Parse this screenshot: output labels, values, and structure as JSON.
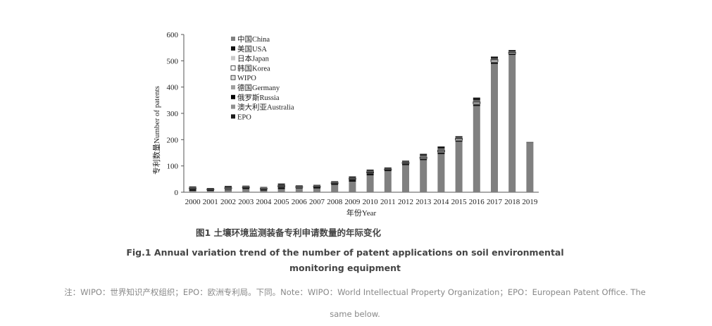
{
  "chart_data": {
    "type": "bar",
    "stacked": true,
    "xlabel": "年份Year",
    "ylabel": "专利数量Number of patents",
    "ylim": [
      0,
      600
    ],
    "yticks": [
      0,
      100,
      200,
      300,
      400,
      500,
      600
    ],
    "legend_position": "top-left",
    "categories": [
      "2000",
      "2001",
      "2002",
      "2003",
      "2004",
      "2005",
      "2006",
      "2007",
      "2008",
      "2009",
      "2010",
      "2011",
      "2012",
      "2013",
      "2014",
      "2015",
      "2016",
      "2017",
      "2018",
      "2019"
    ],
    "series": [
      {
        "name": "中国China",
        "color": "#808080",
        "values": [
          5,
          5,
          8,
          12,
          6,
          12,
          14,
          14,
          28,
          40,
          64,
          80,
          103,
          122,
          145,
          192,
          328,
          488,
          522,
          188
        ]
      },
      {
        "name": "美国USA",
        "color": "#111111",
        "values": [
          7,
          4,
          3,
          5,
          5,
          7,
          3,
          5,
          5,
          8,
          8,
          5,
          5,
          4,
          6,
          4,
          6,
          6,
          4,
          1
        ]
      },
      {
        "name": "日本Japan",
        "color": "#c8c8c8",
        "values": [
          2,
          1,
          3,
          1,
          2,
          2,
          2,
          1,
          1,
          2,
          2,
          1,
          2,
          2,
          2,
          2,
          2,
          2,
          1,
          1
        ]
      },
      {
        "name": "韩国Korea",
        "color": "#ffffff",
        "values": [
          1,
          1,
          2,
          1,
          1,
          2,
          1,
          1,
          1,
          1,
          2,
          1,
          1,
          3,
          4,
          5,
          5,
          6,
          4,
          0
        ]
      },
      {
        "name": "WIPO",
        "color": "#dddddd",
        "values": [
          1,
          1,
          1,
          1,
          1,
          2,
          1,
          1,
          1,
          2,
          2,
          1,
          2,
          3,
          3,
          2,
          3,
          3,
          2,
          0
        ]
      },
      {
        "name": "德国Germany",
        "color": "#a0a0a0",
        "values": [
          1,
          1,
          1,
          1,
          1,
          1,
          1,
          1,
          1,
          1,
          1,
          1,
          1,
          2,
          2,
          1,
          2,
          1,
          1,
          0
        ]
      },
      {
        "name": "俄罗斯Russia",
        "color": "#000000",
        "values": [
          1,
          1,
          1,
          1,
          1,
          1,
          1,
          1,
          1,
          1,
          1,
          1,
          1,
          2,
          2,
          1,
          2,
          1,
          1,
          0
        ]
      },
      {
        "name": "澳大利亚Australia",
        "color": "#909090",
        "values": [
          1,
          0,
          1,
          1,
          1,
          1,
          1,
          1,
          1,
          1,
          1,
          1,
          1,
          2,
          2,
          1,
          2,
          1,
          1,
          0
        ]
      },
      {
        "name": "EPO",
        "color": "#1a1a1a",
        "values": [
          3,
          2,
          4,
          2,
          2,
          5,
          2,
          3,
          3,
          4,
          5,
          3,
          4,
          6,
          8,
          5,
          10,
          8,
          5,
          1
        ]
      }
    ]
  },
  "caption": {
    "cn": "图1 土壤环境监测装备专利申请数量的年际变化",
    "en_line1": "Fig.1 Annual variation trend of the number of patent applications on soil environmental",
    "en_line2": "monitoring equipment"
  },
  "note": {
    "line1": "注：WIPO：世界知识产权组织；EPO：欧洲专利局。下同。Note：WIPO：World Intellectual Property Organization；EPO：European Patent Office. The",
    "line2": "same below."
  }
}
